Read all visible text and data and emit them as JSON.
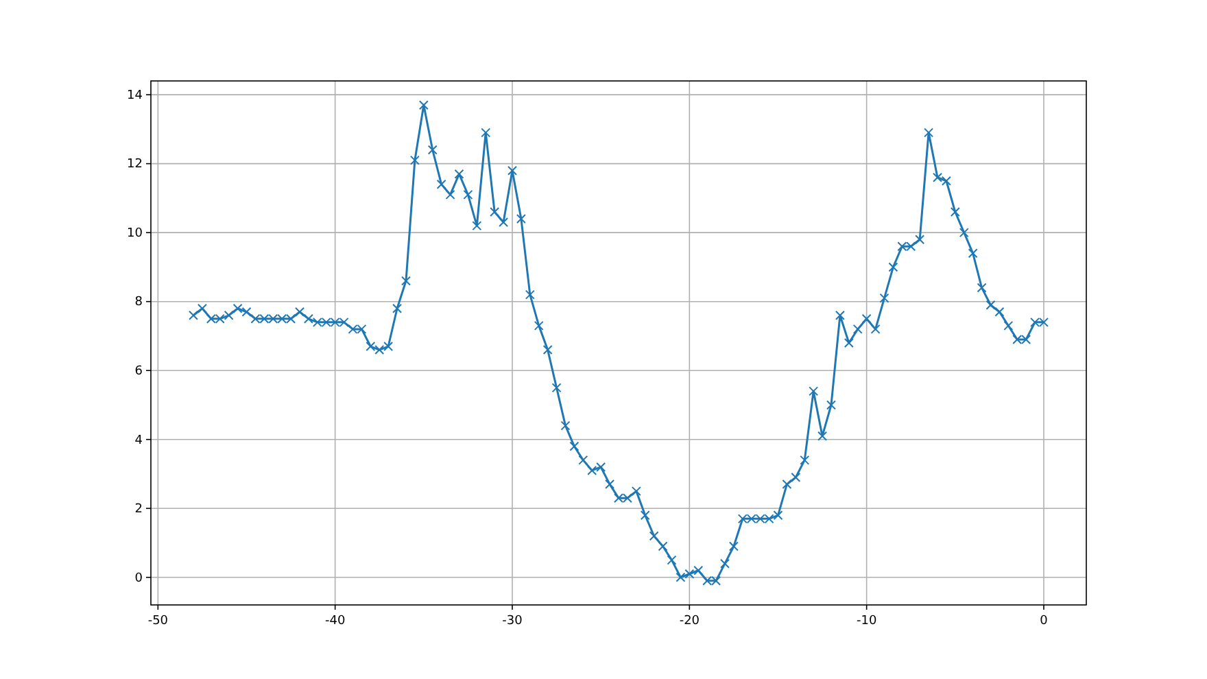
{
  "chart_data": {
    "type": "line",
    "color": "#1f77b4",
    "marker": "cross",
    "grid": true,
    "x": [
      -48,
      -47.5,
      -47,
      -46.5,
      -46,
      -45.5,
      -45,
      -44.5,
      -44,
      -43.5,
      -43,
      -42.5,
      -42,
      -41.5,
      -41,
      -40.5,
      -40,
      -39.5,
      -39,
      -38.5,
      -38,
      -37.5,
      -37,
      -36.5,
      -36,
      -35.5,
      -35,
      -34.5,
      -34,
      -33.5,
      -33,
      -32.5,
      -32,
      -31.5,
      -31,
      -30.5,
      -30,
      -29.5,
      -29,
      -28.5,
      -28,
      -27.5,
      -27,
      -26.5,
      -26,
      -25.5,
      -25,
      -24.5,
      -24,
      -23.5,
      -23,
      -22.5,
      -22,
      -21.5,
      -21,
      -20.5,
      -20,
      -19.5,
      -19,
      -18.5,
      -18,
      -17.5,
      -17,
      -16.5,
      -16,
      -15.5,
      -15,
      -14.5,
      -14,
      -13.5,
      -13,
      -12.5,
      -12,
      -11.5,
      -11,
      -10.5,
      -10,
      -9.5,
      -9,
      -8.5,
      -8,
      -7.5,
      -7,
      -6.5,
      -6,
      -5.5,
      -5,
      -4.5,
      -4,
      -3.5,
      -3,
      -2.5,
      -2,
      -1.5,
      -1,
      -0.5,
      0
    ],
    "values": [
      7.6,
      7.8,
      7.5,
      7.5,
      7.6,
      7.8,
      7.7,
      7.5,
      7.5,
      7.5,
      7.5,
      7.5,
      7.7,
      7.5,
      7.4,
      7.4,
      7.4,
      7.4,
      7.2,
      7.2,
      6.7,
      6.6,
      6.7,
      7.8,
      8.6,
      12.1,
      13.7,
      12.4,
      11.4,
      11.1,
      11.7,
      11.1,
      10.2,
      12.9,
      10.6,
      10.3,
      11.8,
      10.4,
      8.2,
      7.3,
      6.6,
      5.5,
      4.4,
      3.8,
      3.4,
      3.1,
      3.2,
      2.7,
      2.3,
      2.3,
      2.5,
      1.8,
      1.2,
      0.9,
      0.5,
      0.0,
      0.1,
      0.2,
      -0.1,
      -0.1,
      0.4,
      0.9,
      1.7,
      1.7,
      1.7,
      1.7,
      1.8,
      2.7,
      2.9,
      3.4,
      5.4,
      4.1,
      5.0,
      7.6,
      6.8,
      7.2,
      7.5,
      7.2,
      8.1,
      9.0,
      9.6,
      9.6,
      9.8,
      12.9,
      11.6,
      11.5,
      10.6,
      10.0,
      9.4,
      8.4,
      7.9,
      7.7,
      7.3,
      6.9,
      6.9,
      7.4,
      7.4
    ],
    "xlim": [
      -50.4,
      2.4
    ],
    "ylim": [
      -0.8,
      14.4
    ],
    "xticks": [
      -50,
      -40,
      -30,
      -20,
      -10,
      0
    ],
    "yticks": [
      0,
      2,
      4,
      6,
      8,
      10,
      12,
      14
    ]
  }
}
